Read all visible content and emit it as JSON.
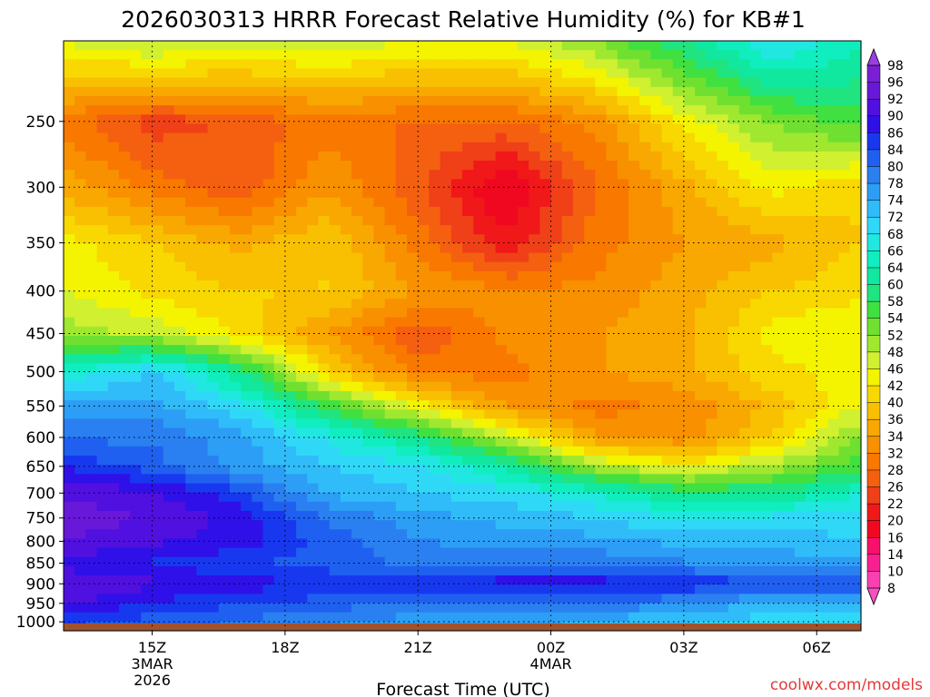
{
  "chart_data": {
    "type": "heatmap",
    "title": "2026030313 HRRR Forecast Relative Humidity (%) for KB#1",
    "xlabel": "Forecast Time (UTC)",
    "ylabel": "",
    "watermark": "coolwx.com/models",
    "x_ticks": [
      {
        "label": "15Z",
        "sub1": "3MAR",
        "sub2": "2026",
        "hour": 15
      },
      {
        "label": "18Z",
        "sub1": "",
        "sub2": "",
        "hour": 18
      },
      {
        "label": "21Z",
        "sub1": "",
        "sub2": "",
        "hour": 21
      },
      {
        "label": "00Z",
        "sub1": "4MAR",
        "sub2": "",
        "hour": 24
      },
      {
        "label": "03Z",
        "sub1": "",
        "sub2": "",
        "hour": 27
      },
      {
        "label": "06Z",
        "sub1": "",
        "sub2": "",
        "hour": 30
      }
    ],
    "x_range_hours": [
      13,
      31
    ],
    "y_ticks": [
      250,
      300,
      350,
      400,
      450,
      500,
      550,
      600,
      650,
      700,
      750,
      800,
      850,
      900,
      950,
      1000
    ],
    "y_range_hpa": [
      200,
      1025
    ],
    "y_scale": "log-pressure",
    "grid": true,
    "colorbar": {
      "labels": [
        "98",
        "96",
        "92",
        "90",
        "86",
        "84",
        "80",
        "78",
        "74",
        "72",
        "68",
        "66",
        "64",
        "60",
        "58",
        "54",
        "52",
        "48",
        "46",
        "42",
        "40",
        "36",
        "34",
        "32",
        "28",
        "26",
        "22",
        "20",
        "16",
        "14",
        "10",
        "8"
      ],
      "colors": [
        "#7a1fd6",
        "#6818d8",
        "#5010e0",
        "#2f10e8",
        "#1838f0",
        "#2060f0",
        "#2a80f0",
        "#2c9ef5",
        "#30bcf8",
        "#30d8f8",
        "#20e8e0",
        "#10eec0",
        "#10e8a0",
        "#20e480",
        "#40e040",
        "#70e030",
        "#a0e830",
        "#d0f030",
        "#f4f400",
        "#f8d800",
        "#f8c000",
        "#f8a800",
        "#f89000",
        "#f87800",
        "#f46010",
        "#f04018",
        "#f01818",
        "#f00820",
        "#f8106a",
        "#f82090",
        "#fa40b0"
      ],
      "legend_placement": "right"
    },
    "pressure_levels": [
      200,
      250,
      300,
      350,
      400,
      450,
      500,
      550,
      600,
      650,
      700,
      750,
      800,
      850,
      900,
      950,
      1000
    ],
    "x_hours": [
      13,
      15,
      17,
      19,
      21,
      23,
      25,
      27,
      29,
      31
    ],
    "rh": [
      [
        46,
        50,
        48,
        48,
        46,
        46,
        52,
        60,
        70,
        64
      ],
      [
        30,
        24,
        26,
        30,
        28,
        28,
        32,
        44,
        52,
        56
      ],
      [
        36,
        30,
        26,
        34,
        26,
        16,
        28,
        36,
        44,
        40
      ],
      [
        44,
        40,
        36,
        40,
        30,
        20,
        30,
        34,
        36,
        40
      ],
      [
        46,
        42,
        40,
        40,
        34,
        32,
        32,
        36,
        40,
        42
      ],
      [
        50,
        48,
        42,
        34,
        26,
        32,
        34,
        36,
        44,
        46
      ],
      [
        66,
        72,
        60,
        40,
        30,
        30,
        34,
        36,
        42,
        44
      ],
      [
        76,
        76,
        70,
        56,
        44,
        34,
        30,
        32,
        38,
        46
      ],
      [
        80,
        80,
        76,
        68,
        60,
        48,
        34,
        32,
        40,
        52
      ],
      [
        86,
        82,
        76,
        72,
        70,
        62,
        50,
        44,
        50,
        56
      ],
      [
        92,
        90,
        84,
        74,
        72,
        70,
        66,
        60,
        60,
        66
      ],
      [
        94,
        92,
        88,
        80,
        76,
        74,
        72,
        68,
        70,
        70
      ],
      [
        92,
        90,
        88,
        82,
        78,
        76,
        76,
        74,
        74,
        72
      ],
      [
        88,
        86,
        84,
        82,
        80,
        80,
        80,
        78,
        76,
        76
      ],
      [
        92,
        90,
        88,
        86,
        86,
        88,
        88,
        86,
        84,
        84
      ],
      [
        90,
        86,
        84,
        82,
        80,
        82,
        80,
        78,
        74,
        74
      ],
      [
        84,
        82,
        80,
        78,
        76,
        76,
        74,
        72,
        70,
        70
      ]
    ]
  }
}
